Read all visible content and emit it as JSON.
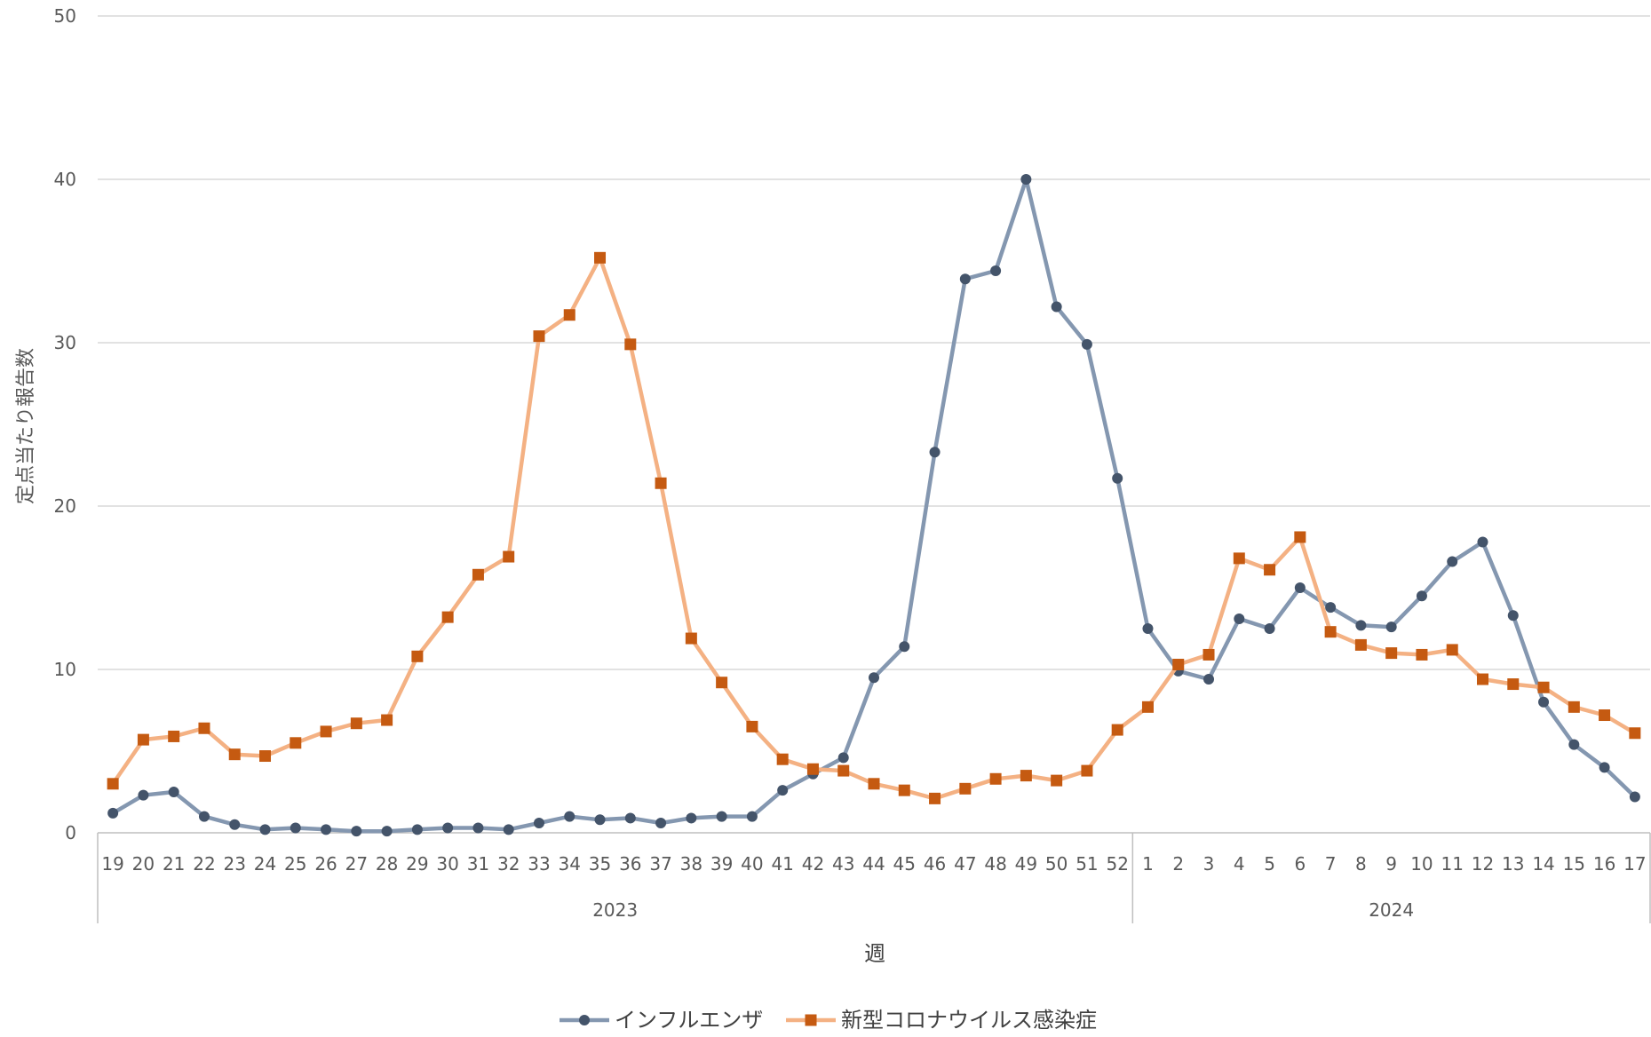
{
  "chart_data": {
    "type": "line",
    "xlabel": "週",
    "ylabel": "定点当たり報告数",
    "ylim": [
      0,
      50
    ],
    "yticks": [
      0,
      10,
      20,
      30,
      40,
      50
    ],
    "grid": true,
    "legend_position": "bottom",
    "categories": [
      "19",
      "20",
      "21",
      "22",
      "23",
      "24",
      "25",
      "26",
      "27",
      "28",
      "29",
      "30",
      "31",
      "32",
      "33",
      "34",
      "35",
      "36",
      "37",
      "38",
      "39",
      "40",
      "41",
      "42",
      "43",
      "44",
      "45",
      "46",
      "47",
      "48",
      "49",
      "50",
      "51",
      "52",
      "1",
      "2",
      "3",
      "4",
      "5",
      "6",
      "7",
      "8",
      "9",
      "10",
      "11",
      "12",
      "13",
      "14",
      "15",
      "16",
      "17"
    ],
    "groups": [
      {
        "label": "2023",
        "start": 0,
        "end": 33
      },
      {
        "label": "2024",
        "start": 34,
        "end": 50
      }
    ],
    "series": [
      {
        "name": "インフルエンザ",
        "color": "#8497b0",
        "marker_color": "#44546a",
        "marker": "circle",
        "values": [
          1.2,
          2.3,
          2.5,
          1.0,
          0.5,
          0.2,
          0.3,
          0.2,
          0.1,
          0.1,
          0.2,
          0.3,
          0.3,
          0.2,
          0.6,
          1.0,
          0.8,
          0.9,
          0.6,
          0.9,
          1.0,
          1.0,
          2.6,
          3.6,
          4.6,
          9.5,
          11.4,
          23.3,
          33.9,
          34.4,
          40.0,
          32.2,
          29.9,
          21.7,
          12.5,
          9.9,
          9.4,
          13.1,
          12.5,
          15.0,
          13.8,
          12.7,
          12.6,
          14.5,
          16.6,
          17.8,
          13.3,
          8.0,
          5.4,
          4.0,
          2.2
        ]
      },
      {
        "name": "新型コロナウイルス感染症",
        "color": "#f4b183",
        "marker_color": "#c55a11",
        "marker": "square",
        "values": [
          3.0,
          5.7,
          5.9,
          6.4,
          4.8,
          4.7,
          5.5,
          6.2,
          6.7,
          6.9,
          10.8,
          13.2,
          15.8,
          16.9,
          30.4,
          31.7,
          35.2,
          29.9,
          21.4,
          11.9,
          9.2,
          6.5,
          4.5,
          3.9,
          3.8,
          3.0,
          2.6,
          2.1,
          2.7,
          3.3,
          3.5,
          3.2,
          3.8,
          6.3,
          7.7,
          10.3,
          10.9,
          16.8,
          16.1,
          18.1,
          12.3,
          11.5,
          11.0,
          10.9,
          11.2,
          9.4,
          9.1,
          8.9,
          7.7,
          7.2,
          6.1
        ]
      }
    ]
  }
}
